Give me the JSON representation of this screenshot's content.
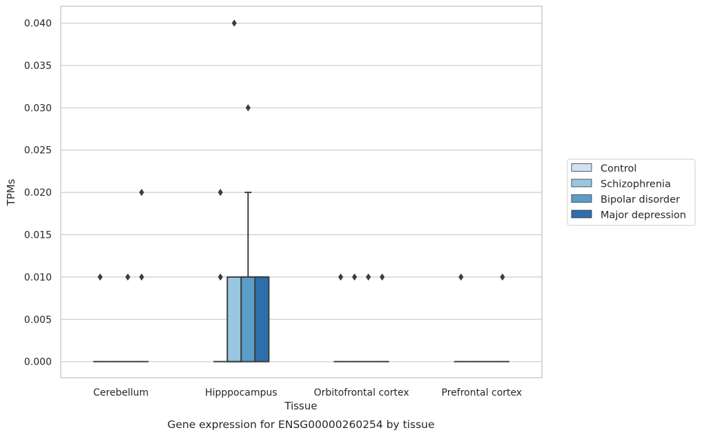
{
  "chart_data": {
    "type": "box",
    "caption": "Gene expression for ENSG00000260254 by tissue",
    "xlabel": "Tissue",
    "ylabel": "TPMs",
    "ylim": [
      -0.0019,
      0.042
    ],
    "yticks": [
      "0.000",
      "0.005",
      "0.010",
      "0.015",
      "0.020",
      "0.025",
      "0.030",
      "0.035",
      "0.040"
    ],
    "ytick_values": [
      0,
      0.005,
      0.01,
      0.015,
      0.02,
      0.025,
      0.03,
      0.035,
      0.04
    ],
    "grid": "horizontal",
    "legend_position": "right",
    "categories": [
      "Cerebellum",
      "Hipppocampus",
      "Orbitofrontal cortex",
      "Prefrontal cortex"
    ],
    "series": [
      {
        "name": "Control",
        "color": "#d1e2f2"
      },
      {
        "name": "Schizophrenia",
        "color": "#9ac7e0"
      },
      {
        "name": "Bipolar disorder",
        "color": "#5b9ec9"
      },
      {
        "name": "Major depression",
        "color": "#2d6fad"
      }
    ],
    "boxes": [
      {
        "category": 0,
        "series": 0,
        "q1": 0,
        "median": 0,
        "q3": 0,
        "whisker_low": 0,
        "whisker_high": 0,
        "outliers": [
          0.01
        ]
      },
      {
        "category": 0,
        "series": 1,
        "q1": 0,
        "median": 0,
        "q3": 0,
        "whisker_low": 0,
        "whisker_high": 0,
        "outliers": []
      },
      {
        "category": 0,
        "series": 2,
        "q1": 0,
        "median": 0,
        "q3": 0,
        "whisker_low": 0,
        "whisker_high": 0,
        "outliers": [
          0.01
        ]
      },
      {
        "category": 0,
        "series": 3,
        "q1": 0,
        "median": 0,
        "q3": 0,
        "whisker_low": 0,
        "whisker_high": 0,
        "outliers": [
          0.01,
          0.02
        ]
      },
      {
        "category": 1,
        "series": 0,
        "q1": 0,
        "median": 0,
        "q3": 0,
        "whisker_low": 0,
        "whisker_high": 0,
        "outliers": [
          0.01,
          0.02
        ]
      },
      {
        "category": 1,
        "series": 1,
        "q1": 0,
        "median": 0,
        "q3": 0.01,
        "whisker_low": 0,
        "whisker_high": 0.01,
        "outliers": [
          0.04
        ]
      },
      {
        "category": 1,
        "series": 2,
        "q1": 0,
        "median": 0.01,
        "q3": 0.01,
        "whisker_low": 0,
        "whisker_high": 0.02,
        "outliers": [
          0.03
        ]
      },
      {
        "category": 1,
        "series": 3,
        "q1": 0,
        "median": 0.01,
        "q3": 0.01,
        "whisker_low": 0,
        "whisker_high": 0.01,
        "outliers": []
      },
      {
        "category": 2,
        "series": 0,
        "q1": 0,
        "median": 0,
        "q3": 0,
        "whisker_low": 0,
        "whisker_high": 0,
        "outliers": [
          0.01
        ]
      },
      {
        "category": 2,
        "series": 1,
        "q1": 0,
        "median": 0,
        "q3": 0,
        "whisker_low": 0,
        "whisker_high": 0,
        "outliers": [
          0.01
        ]
      },
      {
        "category": 2,
        "series": 2,
        "q1": 0,
        "median": 0,
        "q3": 0,
        "whisker_low": 0,
        "whisker_high": 0,
        "outliers": [
          0.01
        ]
      },
      {
        "category": 2,
        "series": 3,
        "q1": 0,
        "median": 0,
        "q3": 0,
        "whisker_low": 0,
        "whisker_high": 0,
        "outliers": [
          0.01
        ]
      },
      {
        "category": 3,
        "series": 0,
        "q1": 0,
        "median": 0,
        "q3": 0,
        "whisker_low": 0,
        "whisker_high": 0,
        "outliers": [
          0.01
        ]
      },
      {
        "category": 3,
        "series": 1,
        "q1": 0,
        "median": 0,
        "q3": 0,
        "whisker_low": 0,
        "whisker_high": 0,
        "outliers": []
      },
      {
        "category": 3,
        "series": 2,
        "q1": 0,
        "median": 0,
        "q3": 0,
        "whisker_low": 0,
        "whisker_high": 0,
        "outliers": []
      },
      {
        "category": 3,
        "series": 3,
        "q1": 0,
        "median": 0,
        "q3": 0,
        "whisker_low": 0,
        "whisker_high": 0,
        "outliers": [
          0.01
        ]
      }
    ]
  }
}
